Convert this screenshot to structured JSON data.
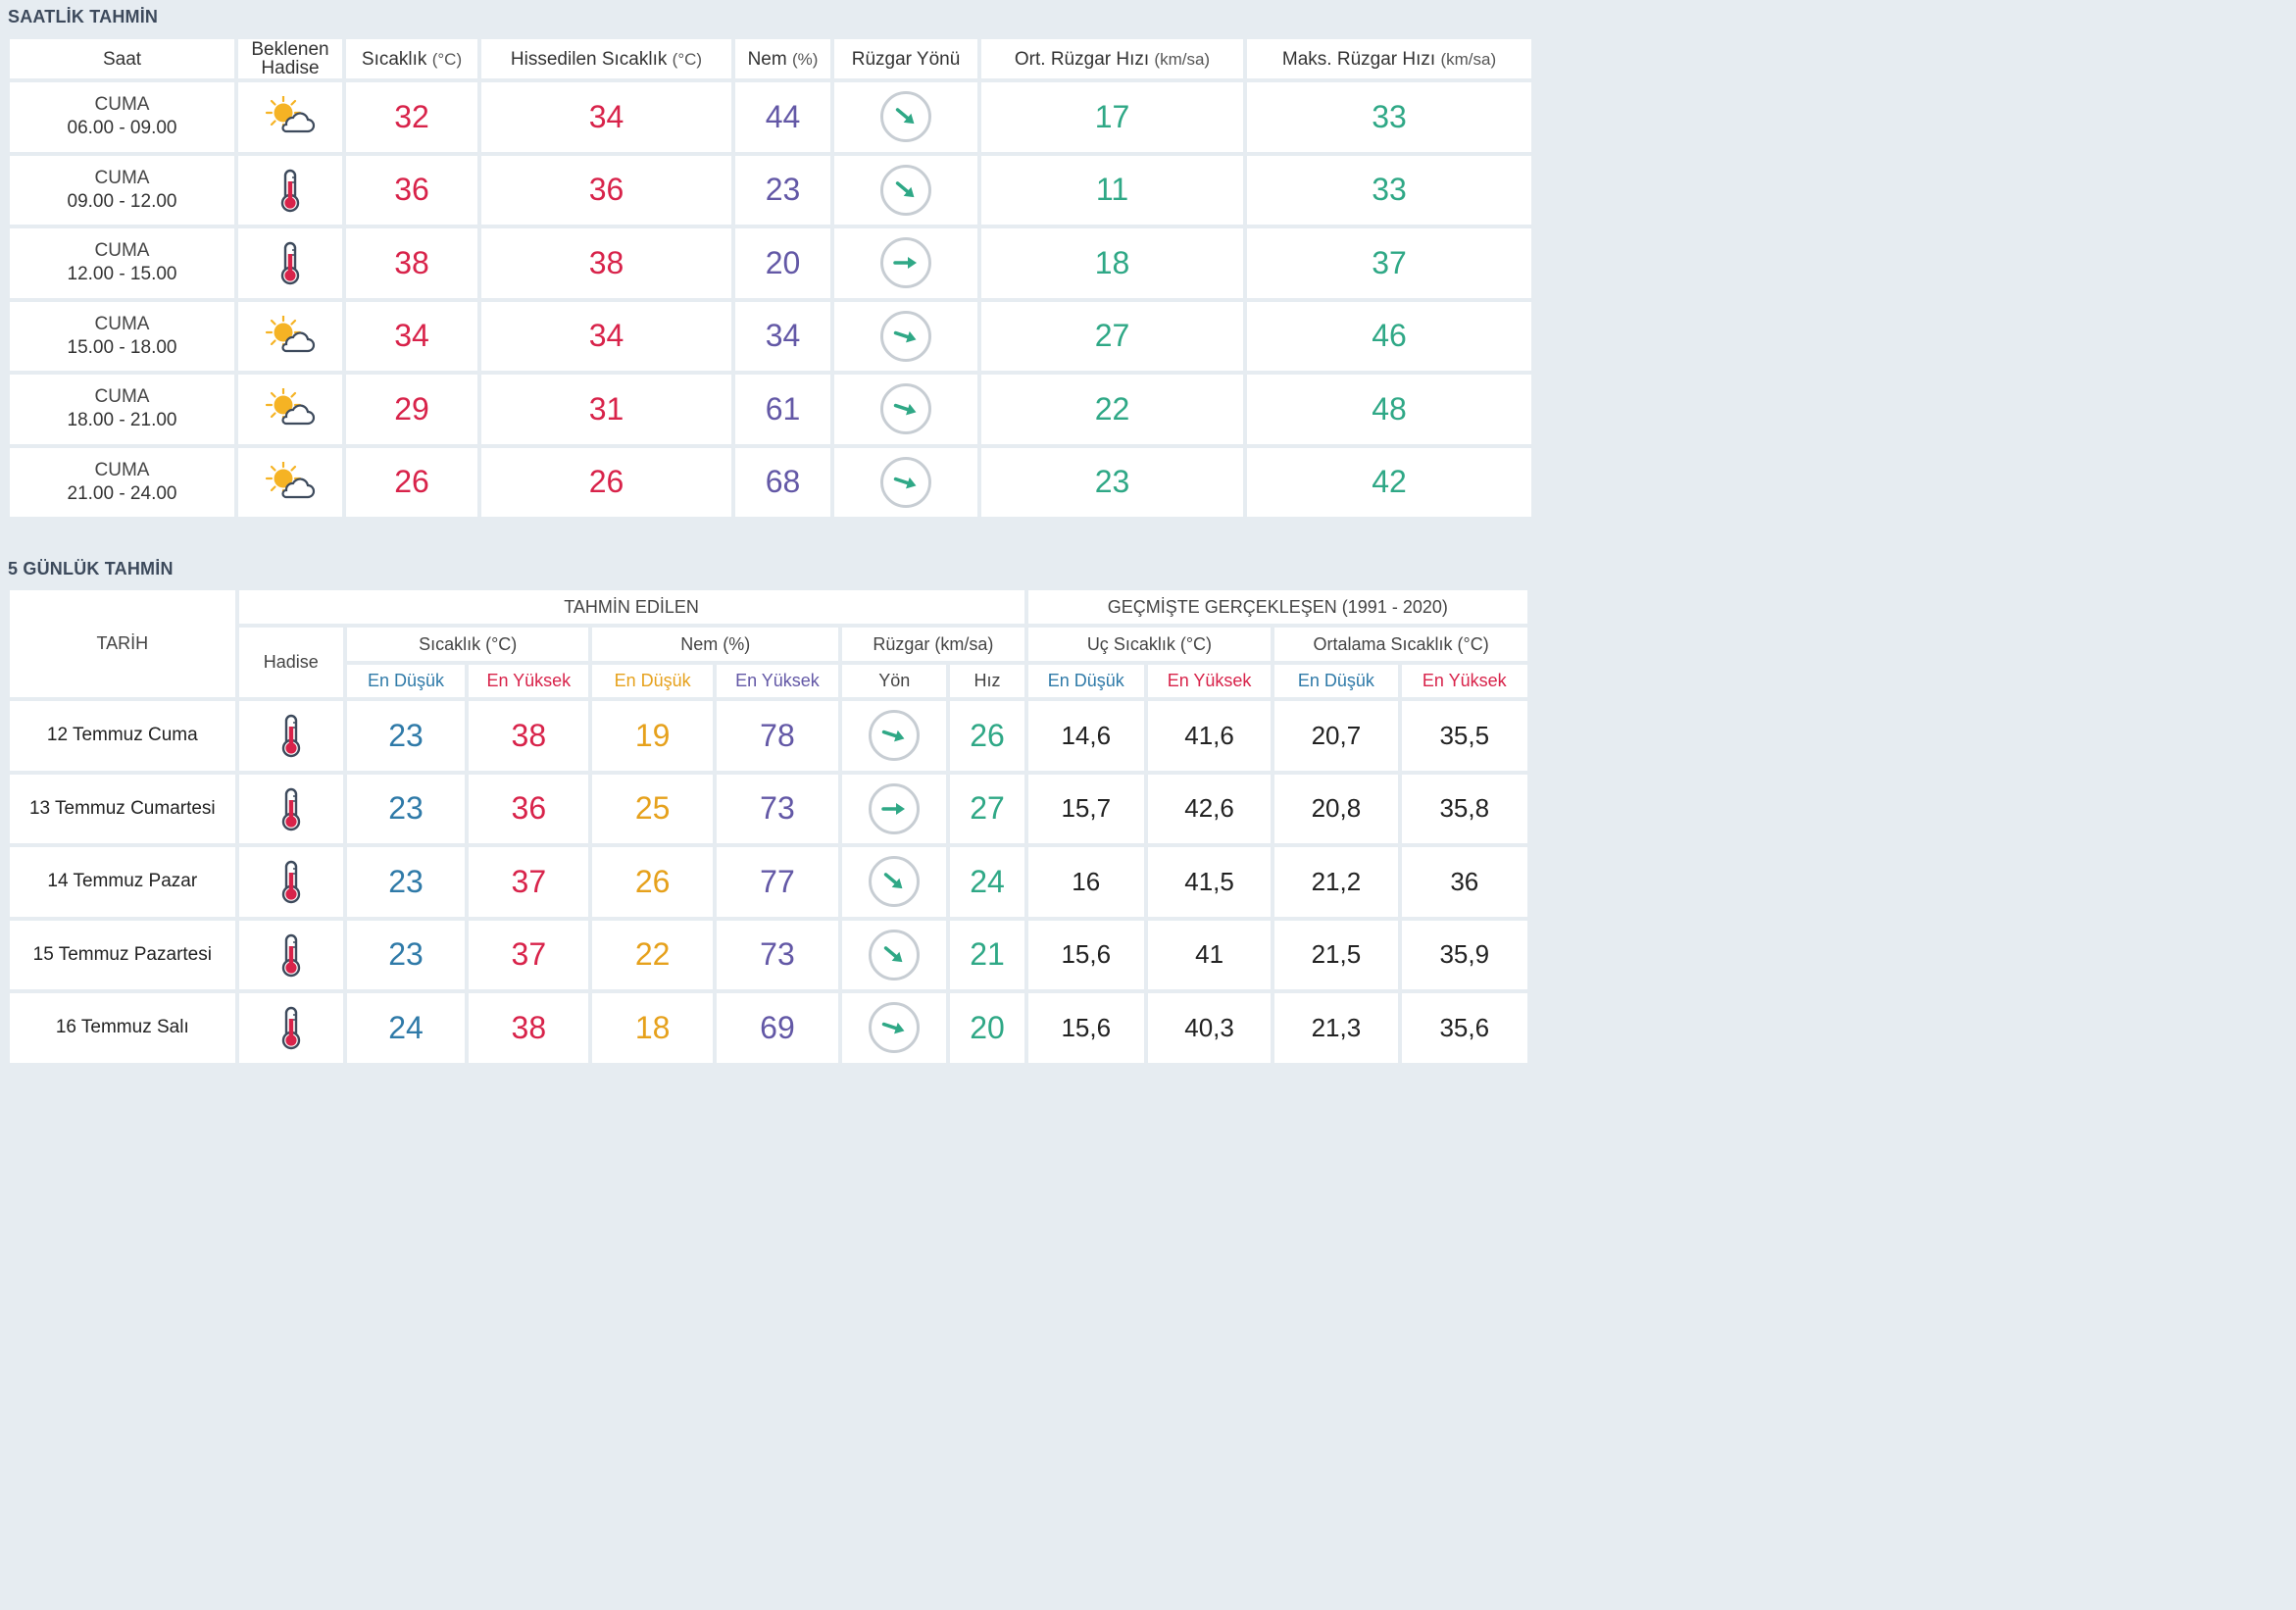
{
  "hourly": {
    "title": "SAATLİK TAHMİN",
    "headers": {
      "saat": "Saat",
      "hadise_1": "Beklenen",
      "hadise_2": "Hadise",
      "sicaklik": "Sıcaklık",
      "sicaklik_unit": "(°C)",
      "hissedilen": "Hissedilen Sıcaklık",
      "hissedilen_unit": "(°C)",
      "nem": "Nem",
      "nem_unit": "(%)",
      "yon": "Rüzgar Yönü",
      "ort": "Ort. Rüzgar Hızı",
      "ort_unit": "(km/sa)",
      "maks": "Maks. Rüzgar Hızı",
      "maks_unit": "(km/sa)"
    },
    "rows": [
      {
        "day": "CUMA",
        "time": "06.00 - 09.00",
        "icon": "partly-cloudy-icon",
        "temp": "32",
        "feel": "34",
        "humidity": "44",
        "wind_dir": "arrow-southeast",
        "avg_wind": "17",
        "max_wind": "33"
      },
      {
        "day": "CUMA",
        "time": "09.00 - 12.00",
        "icon": "thermometer-icon",
        "temp": "36",
        "feel": "36",
        "humidity": "23",
        "wind_dir": "arrow-southeast",
        "avg_wind": "11",
        "max_wind": "33"
      },
      {
        "day": "CUMA",
        "time": "12.00 - 15.00",
        "icon": "thermometer-icon",
        "temp": "38",
        "feel": "38",
        "humidity": "20",
        "wind_dir": "arrow-east",
        "avg_wind": "18",
        "max_wind": "37"
      },
      {
        "day": "CUMA",
        "time": "15.00 - 18.00",
        "icon": "partly-cloudy-icon",
        "temp": "34",
        "feel": "34",
        "humidity": "34",
        "wind_dir": "arrow-east-southeast",
        "avg_wind": "27",
        "max_wind": "46"
      },
      {
        "day": "CUMA",
        "time": "18.00 - 21.00",
        "icon": "partly-cloudy-icon",
        "temp": "29",
        "feel": "31",
        "humidity": "61",
        "wind_dir": "arrow-east-southeast",
        "avg_wind": "22",
        "max_wind": "48"
      },
      {
        "day": "CUMA",
        "time": "21.00 - 24.00",
        "icon": "partly-cloudy-icon",
        "temp": "26",
        "feel": "26",
        "humidity": "68",
        "wind_dir": "arrow-east-southeast",
        "avg_wind": "23",
        "max_wind": "42"
      }
    ]
  },
  "daily": {
    "title": "5 GÜNLÜK TAHMİN",
    "headers": {
      "tarih": "TARİH",
      "tahmin": "TAHMİN EDİLEN",
      "gecmis": "GEÇMİŞTE GERÇEKLEŞEN (1991 - 2020)",
      "hadise": "Hadise",
      "sicaklik": "Sıcaklık (°C)",
      "nem": "Nem (%)",
      "ruzgar": "Rüzgar (km/sa)",
      "uc": "Uç Sıcaklık (°C)",
      "ortalama": "Ortalama Sıcaklık (°C)",
      "en_dusuk": "En Düşük",
      "en_yuksek": "En Yüksek",
      "yon": "Yön",
      "hiz": "Hız"
    },
    "rows": [
      {
        "date": "12 Temmuz Cuma",
        "icon": "thermometer-icon",
        "t_min": "23",
        "t_max": "38",
        "h_min": "19",
        "h_max": "78",
        "wind_dir": "arrow-east-southeast",
        "wind_speed": "26",
        "x_min": "14,6",
        "x_max": "41,6",
        "a_min": "20,7",
        "a_max": "35,5"
      },
      {
        "date": "13 Temmuz Cumartesi",
        "icon": "thermometer-icon",
        "t_min": "23",
        "t_max": "36",
        "h_min": "25",
        "h_max": "73",
        "wind_dir": "arrow-east",
        "wind_speed": "27",
        "x_min": "15,7",
        "x_max": "42,6",
        "a_min": "20,8",
        "a_max": "35,8"
      },
      {
        "date": "14 Temmuz Pazar",
        "icon": "thermometer-icon",
        "t_min": "23",
        "t_max": "37",
        "h_min": "26",
        "h_max": "77",
        "wind_dir": "arrow-southeast",
        "wind_speed": "24",
        "x_min": "16",
        "x_max": "41,5",
        "a_min": "21,2",
        "a_max": "36"
      },
      {
        "date": "15 Temmuz Pazartesi",
        "icon": "thermometer-icon",
        "t_min": "23",
        "t_max": "37",
        "h_min": "22",
        "h_max": "73",
        "wind_dir": "arrow-southeast",
        "wind_speed": "21",
        "x_min": "15,6",
        "x_max": "41",
        "a_min": "21,5",
        "a_max": "35,9"
      },
      {
        "date": "16 Temmuz Salı",
        "icon": "thermometer-icon",
        "t_min": "24",
        "t_max": "38",
        "h_min": "18",
        "h_max": "69",
        "wind_dir": "arrow-east-southeast",
        "wind_speed": "20",
        "x_min": "15,6",
        "x_max": "40,3",
        "a_min": "21,3",
        "a_max": "35,6"
      }
    ]
  },
  "colors": {
    "temp": "#d8234a",
    "humidity": "#6358a6",
    "wind": "#2fa886",
    "min": "#2f7aa8",
    "humidity_min": "#e6a11c",
    "background": "#e6ecf1"
  }
}
